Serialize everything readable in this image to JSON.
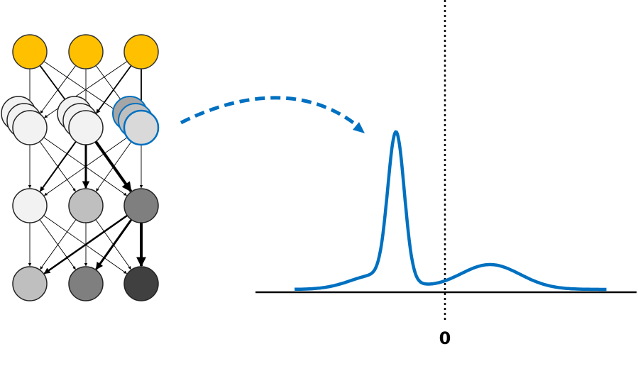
{
  "colors": {
    "input_node": "#ffc000",
    "input_stroke": "#333333",
    "highlight": "#0070c0",
    "curve": "#0070c0",
    "edge": "#000000",
    "node_stroke": "#222222",
    "grays": [
      "#f2f2f2",
      "#e8e8e8",
      "#d9d9d9",
      "#bfbfbf",
      "#a6a6a6",
      "#7f7f7f",
      "#404040"
    ]
  },
  "network": {
    "input_layer": {
      "nodes": 3,
      "fill": "#ffc000"
    },
    "hidden_layer_1": {
      "nodes": 3,
      "stack_fills": [
        [
          "#f2f2f2",
          "#f2f2f2",
          "#f2f2f2"
        ],
        [
          "#f2f2f2",
          "#f2f2f2",
          "#f2f2f2"
        ],
        [
          "#a6a6a6",
          "#bfbfbf",
          "#d9d9d9"
        ]
      ],
      "highlighted_node": 2
    },
    "hidden_layer_2": {
      "fills": [
        "#f2f2f2",
        "#bfbfbf",
        "#7f7f7f"
      ]
    },
    "output_layer": {
      "fills": [
        "#bfbfbf",
        "#7f7f7f",
        "#404040"
      ]
    },
    "bold_edges_l1_l2": [
      [
        1,
        1,
        3
      ],
      [
        1,
        2,
        4
      ],
      [
        1,
        0,
        2
      ]
    ],
    "bold_edges_l2_l3": [
      [
        2,
        2,
        4
      ],
      [
        2,
        1,
        3
      ],
      [
        2,
        0,
        2.5
      ]
    ]
  },
  "distribution": {
    "zero_label": "0",
    "mixture": [
      {
        "mean": -1.3,
        "sd": 0.22,
        "height": 1.0
      },
      {
        "mean": -1.8,
        "sd": 0.7,
        "height": 0.1
      },
      {
        "mean": 1.2,
        "sd": 0.8,
        "height": 0.17
      }
    ],
    "x_range": [
      -4.0,
      4.4
    ],
    "baseline": 0.0
  },
  "icons": {
    "arrow": "dashed-curved-arrow"
  }
}
